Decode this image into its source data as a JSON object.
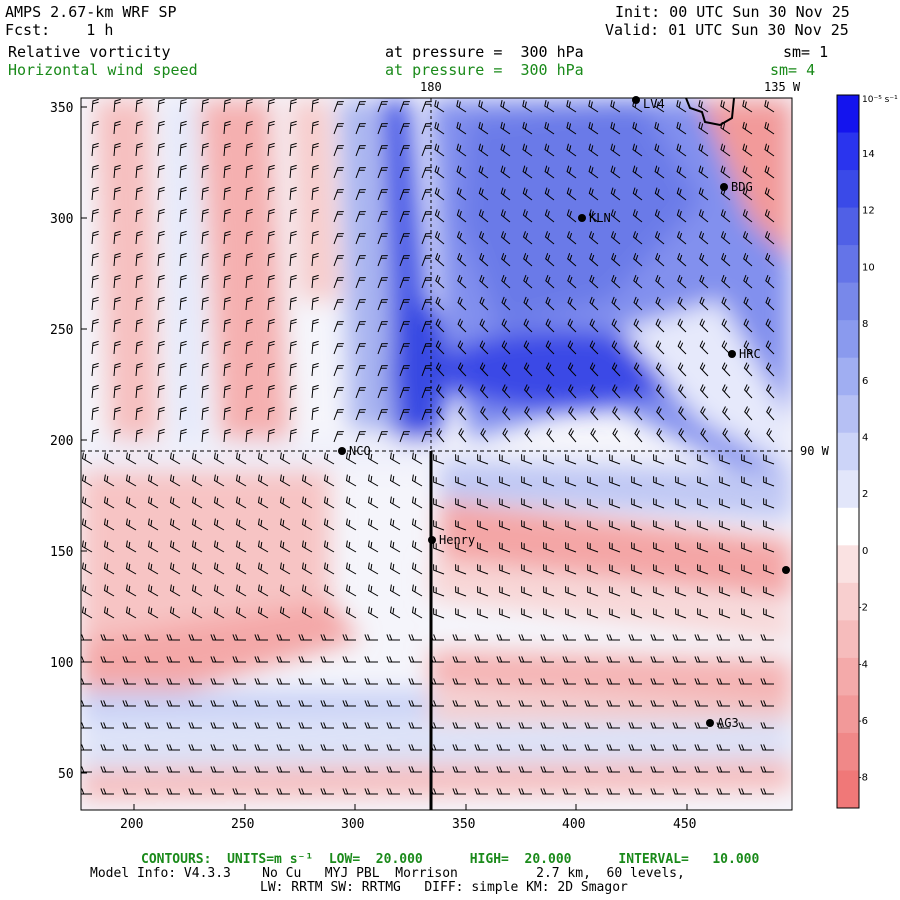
{
  "header": {
    "model_title": "AMPS 2.67-km WRF SP",
    "forecast": "Fcst:    1 h",
    "init": "Init: 00 UTC Sun 30 Nov 25",
    "valid": "Valid: 01 UTC Sun 30 Nov 25",
    "field1_name": "Relative vorticity",
    "field1_level": "at pressure =  300 hPa",
    "field1_smooth": "sm= 1",
    "field2_name": "Horizontal wind speed",
    "field2_level": "at pressure =  300 hPa",
    "field2_smooth": "sm= 4"
  },
  "map": {
    "x_ticks": [
      "200",
      "250",
      "300",
      "350",
      "400",
      "450"
    ],
    "y_ticks": [
      "350",
      "300",
      "250",
      "200",
      "150",
      "100",
      "50"
    ],
    "meridian_label_180": "180",
    "meridian_label_135w": "135 W",
    "parallel_label_90w": "90 W",
    "stations": [
      {
        "name": "LV4"
      },
      {
        "name": "BDG"
      },
      {
        "name": "KLN"
      },
      {
        "name": "HRC"
      },
      {
        "name": "NCO"
      },
      {
        "name": "Henry"
      },
      {
        "name": "AG3"
      }
    ]
  },
  "colorbar": {
    "unit": "10⁻⁵ s⁻¹",
    "labels": [
      "14",
      "12",
      "10",
      "8",
      "6",
      "4",
      "2",
      "0",
      "-2",
      "-4",
      "-6",
      "-8"
    ],
    "colors": [
      "#1414ee",
      "#2a34ee",
      "#3a4ae8",
      "#5060e6",
      "#6474e8",
      "#7888ea",
      "#8a9aee",
      "#a0aef2",
      "#b6c0f4",
      "#ccd4f8",
      "#e2e6fa",
      "#ffffff",
      "#fae2e2",
      "#f8cfcf",
      "#f6bcbc",
      "#f4aaaa",
      "#f29999",
      "#f08888",
      "#f07878"
    ]
  },
  "footer": {
    "contours": "CONTOURS:  UNITS=m s⁻¹  LOW=  20.000      HIGH=  20.000      INTERVAL=   10.000",
    "model_info": "Model Info: V4.3.3    No Cu   MYJ PBL  Morrison          2.7 km,  60 levels,",
    "physics": "LW: RRTM SW: RRTMG   DIFF: simple KM: 2D Smagor"
  }
}
